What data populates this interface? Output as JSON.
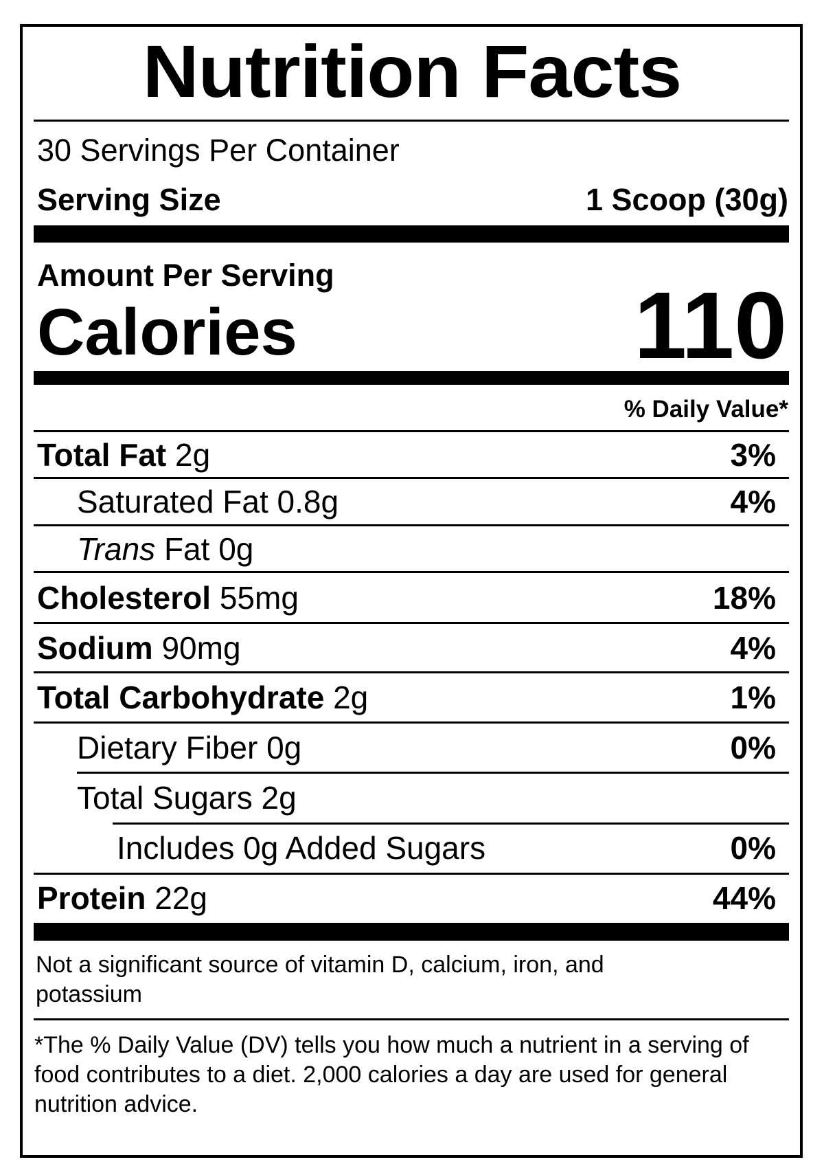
{
  "title": "Nutrition Facts",
  "servings_per_container": "30 Servings Per Container",
  "serving_size": {
    "label": "Serving Size",
    "value": "1 Scoop (30g)"
  },
  "amount_per_serving": "Amount Per Serving",
  "calories": {
    "label": "Calories",
    "value": "110"
  },
  "daily_value_header": "% Daily Value*",
  "nutrients": [
    {
      "name": "Total Fat",
      "amount": "2g",
      "dv": "3%"
    },
    {
      "name": "Saturated Fat",
      "amount": "0.8g",
      "dv": "4%"
    },
    {
      "name": "Trans",
      "suffix": "Fat",
      "amount": "0g",
      "dv": ""
    },
    {
      "name": "Cholesterol",
      "amount": "55mg",
      "dv": "18%"
    },
    {
      "name": "Sodium",
      "amount": "90mg",
      "dv": "4%"
    },
    {
      "name": "Total Carbohydrate",
      "amount": "2g",
      "dv": "1%"
    },
    {
      "name": "Dietary Fiber",
      "amount": "0g",
      "dv": "0%"
    },
    {
      "name": "Total Sugars",
      "amount": "2g",
      "dv": ""
    },
    {
      "name": "Includes 0g Added Sugars",
      "amount": "",
      "dv": "0%"
    },
    {
      "name": "Protein",
      "amount": "22g",
      "dv": "44%"
    }
  ],
  "not_significant_note": "Not a significant source of vitamin D, calcium, iron, and potassium",
  "footnote": "*The % Daily Value (DV) tells you how much a nutrient in a serving of food contributes to a diet. 2,000 calories a day are used for general nutrition advice."
}
